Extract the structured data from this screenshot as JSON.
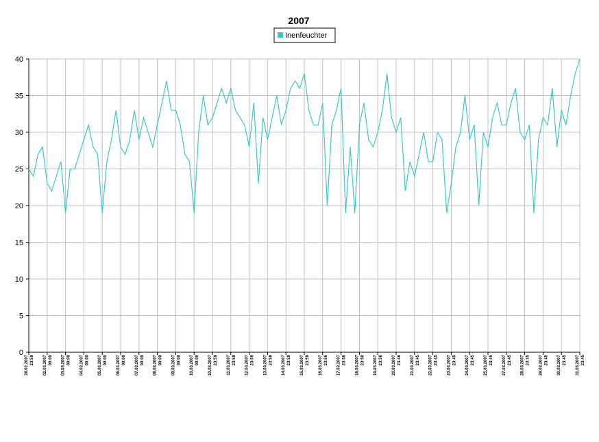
{
  "chart_data": {
    "type": "line",
    "title": "2007",
    "series": [
      {
        "name": "Inenfeuchter",
        "color": "#3cc8c8",
        "values": [
          25,
          24,
          27,
          28,
          23,
          22,
          24,
          26,
          19,
          25,
          25,
          27,
          29,
          31,
          28,
          27,
          19,
          26,
          29,
          33,
          28,
          27,
          29,
          33,
          29,
          32,
          30,
          28,
          31,
          34,
          37,
          33,
          33,
          31,
          27,
          26,
          19,
          30,
          35,
          31,
          32,
          34,
          36,
          34,
          36,
          33,
          32,
          31,
          28,
          34,
          23,
          32,
          29,
          32,
          35,
          31,
          33,
          36,
          37,
          36,
          38,
          33,
          31,
          31,
          34,
          20,
          31,
          33,
          36,
          19,
          28,
          19,
          31,
          34,
          29,
          28,
          30,
          33,
          38,
          32,
          30,
          32,
          22,
          26,
          24,
          27,
          30,
          26,
          26,
          30,
          29,
          19,
          23,
          28,
          30,
          35,
          29,
          31,
          20,
          30,
          28,
          32,
          34,
          31,
          31,
          34,
          36,
          30,
          29,
          31,
          19,
          29,
          32,
          31,
          36,
          28,
          33,
          31,
          35,
          38,
          40
        ]
      }
    ],
    "x": [
      0,
      0.25,
      0.5,
      0.75,
      1,
      1.25,
      1.5,
      1.75,
      2,
      2.25,
      2.5,
      2.75,
      3,
      3.25,
      3.5,
      3.75,
      4,
      4.25,
      4.5,
      4.75,
      5,
      5.25,
      5.5,
      5.75,
      6,
      6.25,
      6.5,
      6.75,
      7,
      7.25,
      7.5,
      7.75,
      8,
      8.25,
      8.5,
      8.75,
      9,
      9.25,
      9.5,
      9.75,
      10,
      10.25,
      10.5,
      10.75,
      11,
      11.25,
      11.5,
      11.75,
      12,
      12.25,
      12.5,
      12.75,
      13,
      13.25,
      13.5,
      13.75,
      14,
      14.25,
      14.5,
      14.75,
      15,
      15.25,
      15.5,
      15.75,
      16,
      16.25,
      16.5,
      16.75,
      17,
      17.25,
      17.5,
      17.75,
      18,
      18.25,
      18.5,
      18.75,
      19,
      19.25,
      19.5,
      19.75,
      20,
      20.25,
      20.5,
      20.75,
      21,
      21.25,
      21.5,
      21.75,
      22,
      22.25,
      22.5,
      22.75,
      23,
      23.25,
      23.5,
      23.75,
      24,
      24.25,
      24.5,
      24.75,
      25,
      25.25,
      25.5,
      25.75,
      26,
      26.25,
      26.5,
      26.75,
      27,
      27.25,
      27.5,
      27.75,
      28,
      28.25,
      28.5,
      28.75,
      29,
      29.25,
      29.5,
      29.75,
      30
    ],
    "xlim": [
      0,
      30
    ],
    "xticks": [
      {
        "value": 0,
        "label": [
          "28.02.2007",
          "23:59"
        ]
      },
      {
        "value": 1,
        "label": [
          "02.03.2007",
          "00:00"
        ]
      },
      {
        "value": 2,
        "label": [
          "03.03.2007",
          "00:00"
        ]
      },
      {
        "value": 3,
        "label": [
          "04.03.2007",
          "00:00"
        ]
      },
      {
        "value": 4,
        "label": [
          "05.03.2007",
          "00:00"
        ]
      },
      {
        "value": 5,
        "label": [
          "06.03.2007",
          "00:00"
        ]
      },
      {
        "value": 6,
        "label": [
          "07.03.2007",
          "00:00"
        ]
      },
      {
        "value": 7,
        "label": [
          "08.03.2007",
          "00:00"
        ]
      },
      {
        "value": 8,
        "label": [
          "09.03.2007",
          "00:00"
        ]
      },
      {
        "value": 9,
        "label": [
          "10.03.2007",
          "00:00"
        ]
      },
      {
        "value": 10,
        "label": [
          "10.03.2007",
          "23:59"
        ]
      },
      {
        "value": 11,
        "label": [
          "11.03.2007",
          "23:59"
        ]
      },
      {
        "value": 12,
        "label": [
          "12.03.2007",
          "23:59"
        ]
      },
      {
        "value": 13,
        "label": [
          "13.03.2007",
          "23:59"
        ]
      },
      {
        "value": 14,
        "label": [
          "14.03.2007",
          "23:59"
        ]
      },
      {
        "value": 15,
        "label": [
          "15.03.2007",
          "23:59"
        ]
      },
      {
        "value": 16,
        "label": [
          "16.03.2007",
          "23:58"
        ]
      },
      {
        "value": 17,
        "label": [
          "17.03.2007",
          "23:58"
        ]
      },
      {
        "value": 18,
        "label": [
          "18.03.2007",
          "23:58"
        ]
      },
      {
        "value": 19,
        "label": [
          "19.03.2007",
          "23:58"
        ]
      },
      {
        "value": 20,
        "label": [
          "20.03.2007",
          "23:46"
        ]
      },
      {
        "value": 21,
        "label": [
          "21.03.2007",
          "23:45"
        ]
      },
      {
        "value": 22,
        "label": [
          "22.03.2007",
          "23:45"
        ]
      },
      {
        "value": 23,
        "label": [
          "23.03.2007",
          "23:45"
        ]
      },
      {
        "value": 24,
        "label": [
          "24.03.2007",
          "23:45"
        ]
      },
      {
        "value": 25,
        "label": [
          "25.03.2007",
          "23:45"
        ]
      },
      {
        "value": 26,
        "label": [
          "27.03.2007",
          "23:45"
        ]
      },
      {
        "value": 27,
        "label": [
          "28.03.2007",
          "23:45"
        ]
      },
      {
        "value": 28,
        "label": [
          "29.03.2007",
          "23:45"
        ]
      },
      {
        "value": 29,
        "label": [
          "30.03.2007",
          "23:45"
        ]
      },
      {
        "value": 30,
        "label": [
          "31.03.2007",
          "23:45"
        ]
      }
    ],
    "ylim": [
      0,
      40
    ],
    "yticks": [
      0,
      5,
      10,
      15,
      20,
      25,
      30,
      35,
      40
    ],
    "grid": true,
    "legend": "top"
  }
}
